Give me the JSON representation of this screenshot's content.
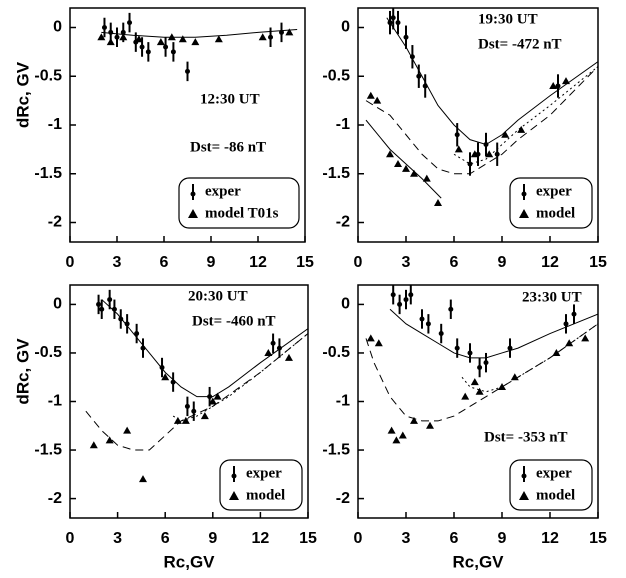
{
  "chart_data": [
    {
      "type": "scatter",
      "ylabel": "dRc, GV",
      "annotations": [
        "12:30 UT",
        "Dst= -86 nT"
      ],
      "xlim": [
        0,
        15
      ],
      "ylim": [
        -2.2,
        0.2
      ],
      "xticks": [
        0,
        3,
        6,
        9,
        12,
        15
      ],
      "yticks": [
        0,
        -0.5,
        -1,
        -1.5,
        -2
      ],
      "series": [
        {
          "name": "exper",
          "color": "#000000",
          "x": [
            2.2,
            2.6,
            3.0,
            3.4,
            3.8,
            4.2,
            4.6,
            5.0,
            6.1,
            6.6,
            7.5,
            12.8,
            13.5
          ],
          "values": [
            0,
            -0.05,
            -0.1,
            -0.05,
            0.05,
            -0.15,
            -0.2,
            -0.25,
            -0.2,
            -0.25,
            -0.45,
            -0.1,
            -0.05
          ],
          "errors": [
            0.1,
            0.1,
            0.1,
            0.1,
            0.1,
            0.1,
            0.1,
            0.1,
            0.1,
            0.1,
            0.1,
            0.1,
            0.1
          ]
        },
        {
          "name": "model T01s",
          "color": "#000000",
          "x": [
            2.0,
            2.6,
            3.4,
            4.4,
            5.8,
            6.5,
            7.2,
            8.0,
            9.5,
            12.3,
            14.0
          ],
          "values": [
            -0.1,
            -0.15,
            -0.1,
            -0.12,
            -0.15,
            -0.1,
            -0.12,
            -0.15,
            -0.12,
            -0.1,
            -0.05
          ]
        }
      ],
      "fits": [
        {
          "style": "solid",
          "x": [
            2,
            4,
            6,
            8,
            10,
            12,
            14.5
          ],
          "values": [
            -0.05,
            -0.08,
            -0.1,
            -0.1,
            -0.08,
            -0.05,
            -0.02
          ]
        }
      ]
    },
    {
      "type": "scatter",
      "annotations": [
        "19:30 UT",
        "Dst= -472 nT"
      ],
      "xlim": [
        0,
        15
      ],
      "ylim": [
        -2.2,
        0.2
      ],
      "xticks": [
        0,
        3,
        6,
        9,
        12,
        15
      ],
      "yticks": [
        0,
        -0.5,
        -1,
        -1.5,
        -2
      ],
      "series": [
        {
          "name": "exper",
          "color": "#000000",
          "x": [
            2.0,
            2.2,
            2.5,
            3.0,
            3.4,
            3.8,
            4.2,
            6.2,
            7.0,
            7.5,
            8.0,
            8.7,
            12.5
          ],
          "values": [
            0.05,
            0.1,
            0.05,
            -0.1,
            -0.3,
            -0.5,
            -0.6,
            -1.1,
            -1.4,
            -1.3,
            -1.2,
            -1.3,
            -0.6
          ],
          "errors": [
            0.12,
            0.12,
            0.12,
            0.12,
            0.12,
            0.12,
            0.12,
            0.12,
            0.12,
            0.12,
            0.12,
            0.12,
            0.12
          ]
        },
        {
          "name": "model",
          "color": "#000000",
          "x": [
            0.8,
            1.2,
            2.0,
            2.5,
            3.0,
            3.5,
            4.3,
            5.0,
            6.3,
            7.3,
            8.2,
            9.2,
            10.2,
            12.2,
            13.0
          ],
          "values": [
            -0.7,
            -0.75,
            -1.3,
            -1.4,
            -1.45,
            -1.5,
            -1.55,
            -1.8,
            -1.25,
            -1.3,
            -1.3,
            -1.1,
            -1.05,
            -0.6,
            -0.55
          ]
        }
      ],
      "fits": [
        {
          "style": "solid",
          "x": [
            1.8,
            3,
            4,
            5,
            6,
            7,
            8,
            9,
            10,
            12,
            15
          ],
          "values": [
            0.1,
            -0.2,
            -0.5,
            -0.8,
            -1.0,
            -1.15,
            -1.2,
            -1.1,
            -0.95,
            -0.7,
            -0.35
          ]
        },
        {
          "style": "dashed",
          "x": [
            0.5,
            2,
            3,
            4,
            5,
            6,
            7,
            8,
            9,
            10,
            12,
            15
          ],
          "values": [
            -0.75,
            -0.9,
            -1.1,
            -1.3,
            -1.45,
            -1.5,
            -1.5,
            -1.4,
            -1.3,
            -1.15,
            -0.9,
            -0.4
          ]
        },
        {
          "style": "solid",
          "x": [
            0.5,
            2,
            4,
            5.2
          ],
          "values": [
            -0.95,
            -1.25,
            -1.55,
            -1.75
          ]
        },
        {
          "style": "dotted",
          "x": [
            6,
            7,
            8,
            9,
            10,
            12,
            15
          ],
          "values": [
            -1.3,
            -1.4,
            -1.35,
            -1.2,
            -1.05,
            -0.8,
            -0.4
          ]
        }
      ]
    },
    {
      "type": "scatter",
      "ylabel": "dRc, GV",
      "xlabel": "Rc,GV",
      "annotations": [
        "20:30 UT",
        "Dst= -460 nT"
      ],
      "xlim": [
        0,
        15
      ],
      "ylim": [
        -2.2,
        0.2
      ],
      "xticks": [
        0,
        3,
        6,
        9,
        12,
        15
      ],
      "yticks": [
        0,
        -0.5,
        -1,
        -1.5,
        -2
      ],
      "series": [
        {
          "name": "exper",
          "color": "#000000",
          "x": [
            1.8,
            2.0,
            2.5,
            2.8,
            3.2,
            3.6,
            4.2,
            4.6,
            5.8,
            6.5,
            7.4,
            7.8,
            8.8,
            12.8,
            13.2
          ],
          "values": [
            0,
            -0.05,
            0.05,
            -0.05,
            -0.15,
            -0.2,
            -0.3,
            -0.45,
            -0.65,
            -0.8,
            -1.05,
            -1.1,
            -0.95,
            -0.4,
            -0.45
          ],
          "errors": [
            0.1,
            0.1,
            0.1,
            0.1,
            0.1,
            0.1,
            0.1,
            0.1,
            0.1,
            0.1,
            0.1,
            0.1,
            0.1,
            0.1,
            0.1
          ]
        },
        {
          "name": "model",
          "color": "#000000",
          "x": [
            1.5,
            2.5,
            3.6,
            4.6,
            6.0,
            6.8,
            7.3,
            8.5,
            9.0,
            9.3,
            12.5,
            13.8
          ],
          "values": [
            -1.45,
            -1.4,
            -1.3,
            -1.8,
            -0.75,
            -1.2,
            -1.2,
            -1.15,
            -1.0,
            -0.95,
            -0.5,
            -0.55
          ]
        }
      ],
      "fits": [
        {
          "style": "solid",
          "x": [
            2,
            3,
            4,
            5,
            6,
            7,
            8,
            9,
            10,
            12,
            15
          ],
          "values": [
            0.05,
            -0.1,
            -0.3,
            -0.5,
            -0.7,
            -0.85,
            -0.95,
            -0.95,
            -0.85,
            -0.6,
            -0.25
          ]
        },
        {
          "style": "dashed",
          "x": [
            1,
            2,
            3,
            4,
            5,
            6,
            7,
            9,
            12,
            15
          ],
          "values": [
            -1.1,
            -1.3,
            -1.45,
            -1.5,
            -1.5,
            -1.35,
            -1.2,
            -1.05,
            -0.7,
            -0.3
          ]
        },
        {
          "style": "dotted",
          "x": [
            6.5,
            7,
            8,
            9,
            10,
            12,
            15
          ],
          "values": [
            -1.15,
            -1.2,
            -1.15,
            -1.05,
            -0.95,
            -0.7,
            -0.3
          ]
        }
      ]
    },
    {
      "type": "scatter",
      "xlabel": "Rc,GV",
      "annotations": [
        "23:30 UT",
        "Dst= -353 nT"
      ],
      "xlim": [
        0,
        15
      ],
      "ylim": [
        -2.2,
        0.2
      ],
      "xticks": [
        0,
        3,
        6,
        9,
        12,
        15
      ],
      "yticks": [
        0,
        -0.5,
        -1,
        -1.5,
        -2
      ],
      "series": [
        {
          "name": "exper",
          "color": "#000000",
          "x": [
            2.2,
            2.6,
            3.0,
            3.3,
            4.0,
            4.4,
            5.2,
            5.8,
            6.2,
            7.0,
            7.6,
            8.0,
            9.5,
            13.0,
            13.5
          ],
          "values": [
            0.1,
            0,
            0.05,
            0.1,
            -0.15,
            -0.2,
            -0.3,
            -0.05,
            -0.45,
            -0.5,
            -0.65,
            -0.6,
            -0.45,
            -0.2,
            -0.1
          ],
          "errors": [
            0.1,
            0.1,
            0.1,
            0.1,
            0.1,
            0.1,
            0.1,
            0.1,
            0.1,
            0.1,
            0.1,
            0.1,
            0.1,
            0.1,
            0.1
          ]
        },
        {
          "name": "model",
          "color": "#000000",
          "x": [
            0.8,
            1.3,
            2.1,
            2.4,
            2.8,
            3.5,
            4.5,
            6.7,
            7.3,
            7.6,
            9.0,
            9.8,
            12.4,
            13.2,
            14.2
          ],
          "values": [
            -0.35,
            -0.4,
            -1.3,
            -1.4,
            -1.35,
            -1.2,
            -1.25,
            -0.95,
            -0.8,
            -0.9,
            -0.85,
            -0.75,
            -0.5,
            -0.4,
            -0.35
          ]
        }
      ],
      "fits": [
        {
          "style": "solid",
          "x": [
            2,
            3,
            4,
            5,
            6,
            7,
            8,
            9,
            10,
            12,
            15
          ],
          "values": [
            -0.05,
            -0.2,
            -0.3,
            -0.4,
            -0.5,
            -0.55,
            -0.55,
            -0.5,
            -0.45,
            -0.3,
            -0.1
          ]
        },
        {
          "style": "dashed",
          "x": [
            0.5,
            1,
            2,
            3,
            4,
            5,
            6,
            8,
            10,
            12,
            15
          ],
          "values": [
            -0.35,
            -0.6,
            -0.95,
            -1.15,
            -1.2,
            -1.2,
            -1.15,
            -0.95,
            -0.75,
            -0.55,
            -0.2
          ]
        },
        {
          "style": "dotted",
          "x": [
            6.5,
            7,
            8,
            9,
            10,
            12,
            15
          ],
          "values": [
            -0.75,
            -0.85,
            -0.9,
            -0.85,
            -0.75,
            -0.55,
            -0.2
          ]
        }
      ]
    }
  ]
}
